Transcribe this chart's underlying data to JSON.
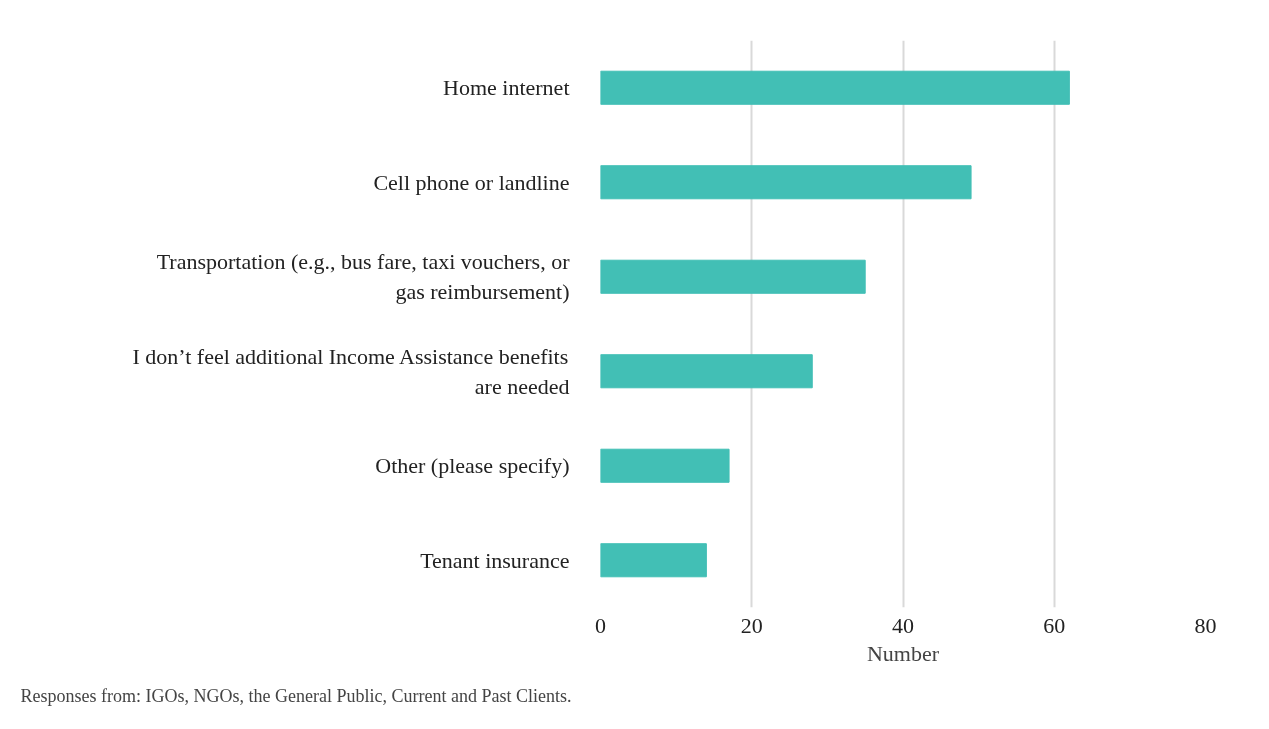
{
  "chart_data": {
    "type": "bar",
    "orientation": "horizontal",
    "categories": [
      "Home internet",
      "Cell phone or landline",
      "Transportation (e.g., bus fare, taxi vouchers, or gas reimbursement)",
      "I don’t feel additional Income Assistance benefits are needed",
      "Other (please specify)",
      "Tenant insurance"
    ],
    "values": [
      62,
      49,
      35,
      28,
      17,
      14
    ],
    "color": "#42bfb5",
    "xlim": [
      0,
      80
    ],
    "xticks": [
      0,
      20,
      40,
      60,
      80
    ],
    "xlabel": "Number",
    "grid": "x",
    "annotations": [
      "Responses from: IGOs, NGOs, the General Public, Current and Past Clients."
    ]
  }
}
